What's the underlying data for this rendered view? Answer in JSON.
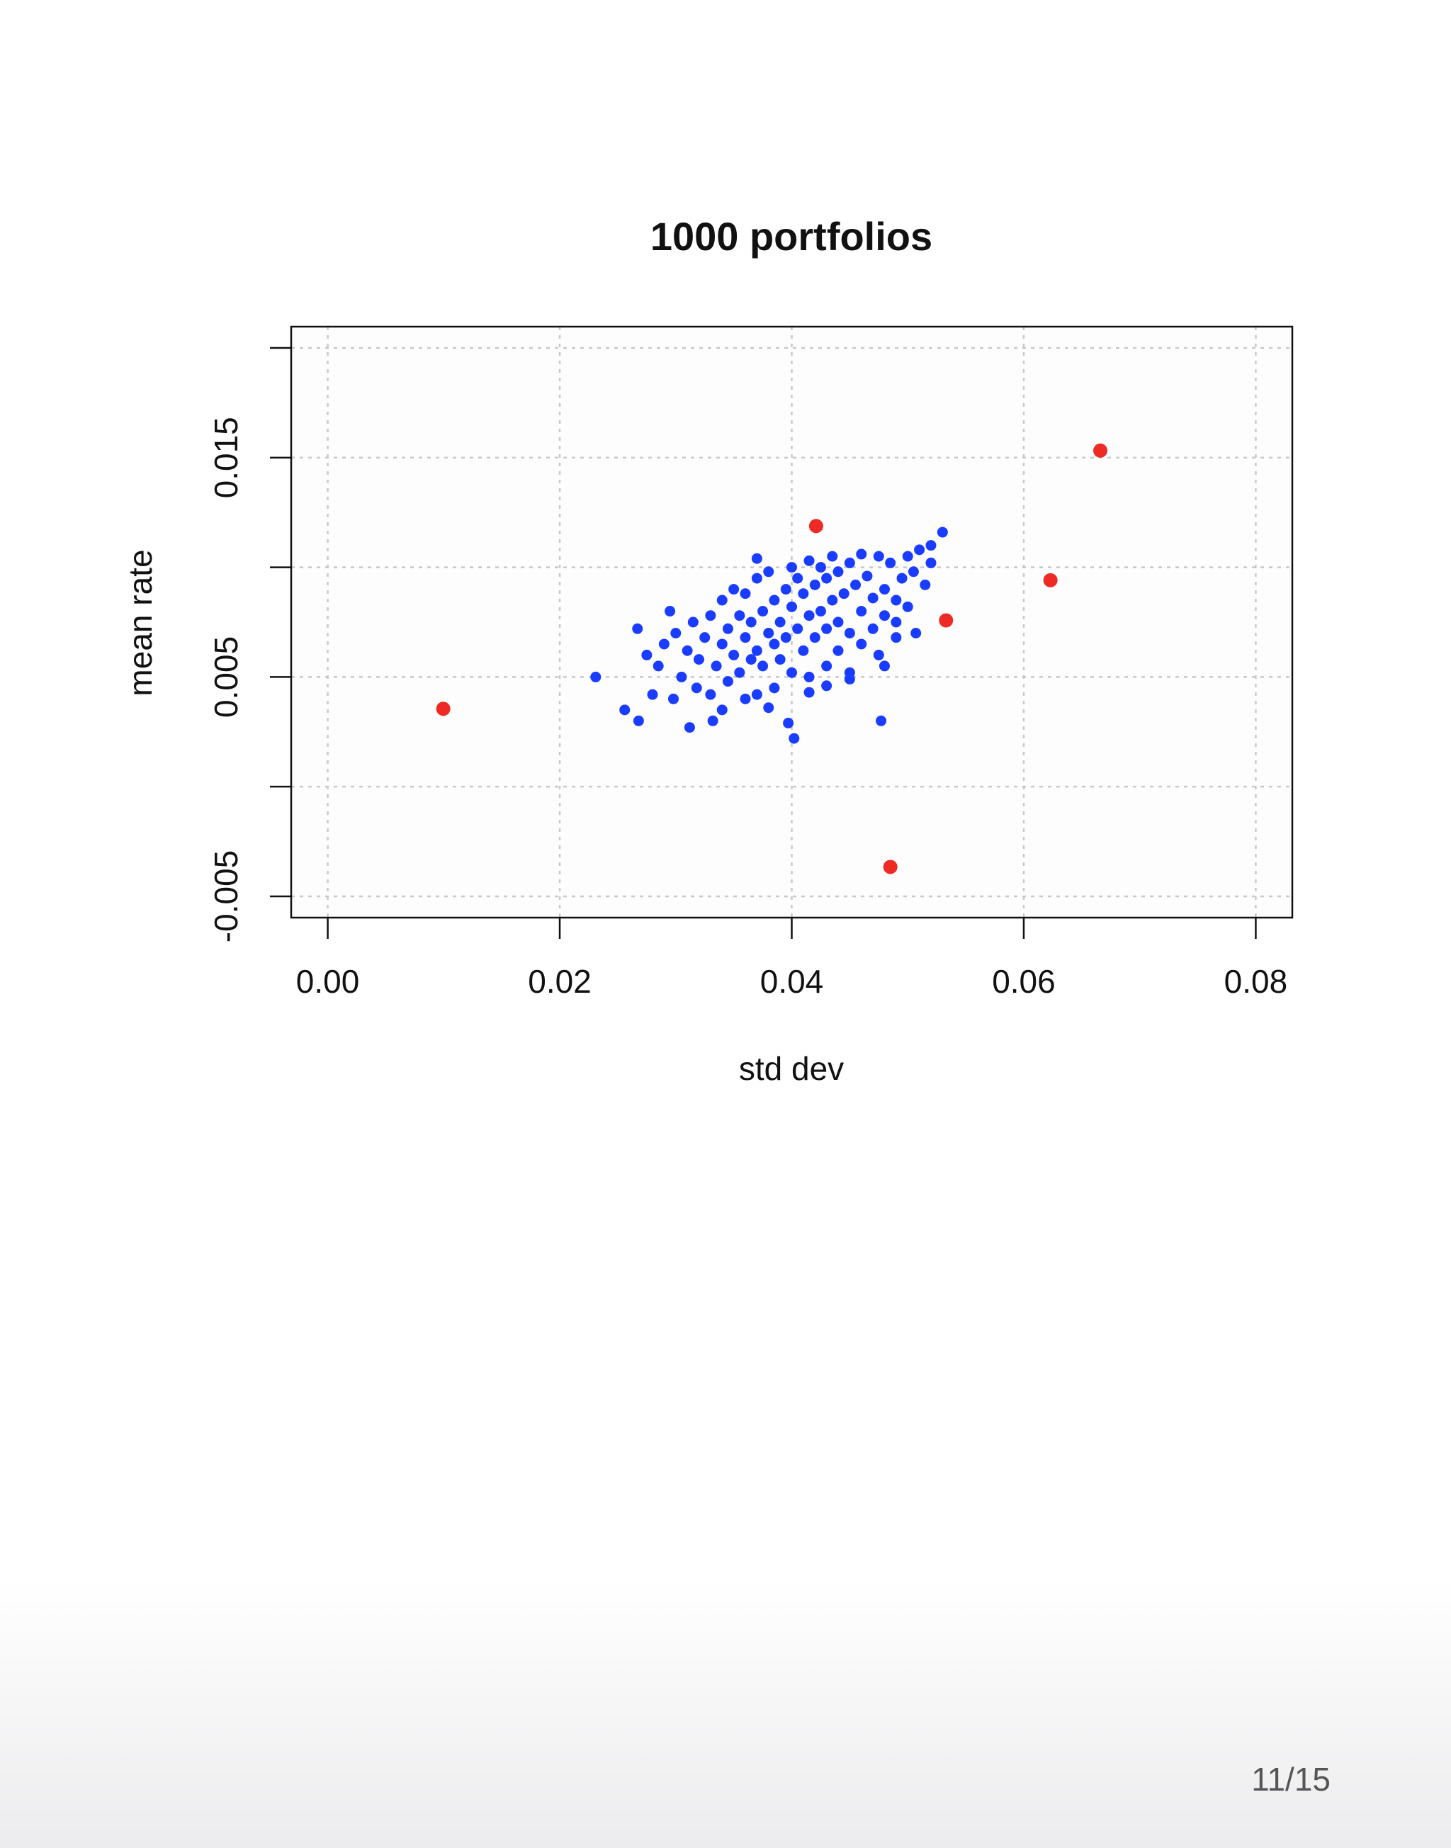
{
  "chart_data": {
    "type": "scatter",
    "title": "1000  portfolios",
    "x_label": "std dev",
    "y_label": "mean rate",
    "xlim": [
      -0.00315,
      0.08315
    ],
    "ylim": [
      -0.00597,
      0.02097
    ],
    "xticks": [
      {
        "value": 0,
        "label": "0.00"
      },
      0.02,
      0.04,
      0.06,
      0.08
    ],
    "yticks": [
      -0.005,
      {
        "value": 0,
        "label": null
      },
      0.005,
      {
        "value": 0.01,
        "label": null
      },
      0.015,
      {
        "value": 0.02,
        "label": null
      }
    ],
    "grid": true,
    "series": [
      {
        "color": "#1a3cff",
        "x": [
          0.0231,
          0.0256,
          0.0268,
          0.0312,
          0.0332,
          0.0397,
          0.0402,
          0.0477,
          0.053,
          0.0507,
          0.0267,
          0.0295,
          0.037,
          0.0275,
          0.028,
          0.0285,
          0.029,
          0.0298,
          0.03,
          0.0305,
          0.031,
          0.0315,
          0.0318,
          0.032,
          0.0325,
          0.033,
          0.033,
          0.0335,
          0.034,
          0.034,
          0.0345,
          0.0345,
          0.035,
          0.035,
          0.0355,
          0.0355,
          0.036,
          0.036,
          0.0365,
          0.0365,
          0.037,
          0.037,
          0.037,
          0.0375,
          0.0375,
          0.038,
          0.038,
          0.0385,
          0.0385,
          0.0385,
          0.039,
          0.039,
          0.0395,
          0.0395,
          0.04,
          0.04,
          0.04,
          0.0405,
          0.0405,
          0.041,
          0.041,
          0.0415,
          0.0415,
          0.0415,
          0.042,
          0.042,
          0.0425,
          0.0425,
          0.043,
          0.043,
          0.043,
          0.0435,
          0.0435,
          0.044,
          0.044,
          0.044,
          0.0445,
          0.045,
          0.045,
          0.045,
          0.0455,
          0.046,
          0.046,
          0.046,
          0.0465,
          0.047,
          0.047,
          0.0475,
          0.0475,
          0.048,
          0.048,
          0.0485,
          0.049,
          0.049,
          0.0495,
          0.05,
          0.05,
          0.0505,
          0.051,
          0.0515,
          0.052,
          0.052,
          0.045,
          0.043,
          0.036,
          0.038,
          0.0415,
          0.034,
          0.048,
          0.049
        ],
        "values": [
          0.005,
          0.0035,
          0.003,
          0.0027,
          0.003,
          0.0029,
          0.0022,
          0.003,
          0.0116,
          0.007,
          0.0072,
          0.008,
          0.0104,
          0.006,
          0.0042,
          0.0055,
          0.0065,
          0.004,
          0.007,
          0.005,
          0.0062,
          0.0075,
          0.0045,
          0.0058,
          0.0068,
          0.0078,
          0.0042,
          0.0055,
          0.0065,
          0.0085,
          0.0072,
          0.0048,
          0.006,
          0.009,
          0.0078,
          0.0052,
          0.0068,
          0.0088,
          0.0058,
          0.0075,
          0.0095,
          0.0062,
          0.0042,
          0.008,
          0.0055,
          0.007,
          0.0098,
          0.0065,
          0.0085,
          0.0045,
          0.0075,
          0.0058,
          0.009,
          0.0068,
          0.0082,
          0.01,
          0.0052,
          0.0072,
          0.0095,
          0.0062,
          0.0088,
          0.0078,
          0.0103,
          0.005,
          0.0092,
          0.0068,
          0.008,
          0.01,
          0.0072,
          0.0095,
          0.0055,
          0.0085,
          0.0105,
          0.0075,
          0.0098,
          0.0062,
          0.0088,
          0.007,
          0.0102,
          0.0052,
          0.0092,
          0.008,
          0.0106,
          0.0065,
          0.0096,
          0.0086,
          0.0072,
          0.0105,
          0.006,
          0.009,
          0.0078,
          0.0102,
          0.0085,
          0.0068,
          0.0095,
          0.0105,
          0.0082,
          0.0098,
          0.0108,
          0.0092,
          0.0102,
          0.011,
          0.0049,
          0.0046,
          0.004,
          0.0036,
          0.0043,
          0.0035,
          0.0055,
          0.0075
        ]
      },
      {
        "color": "#ee2a24",
        "x": [
          0.00996,
          0.0421,
          0.0666,
          0.0623,
          0.0533,
          0.0485
        ],
        "values": [
          0.00355,
          0.01188,
          0.01532,
          0.00941,
          0.00758,
          -0.00366
        ]
      }
    ]
  },
  "page_indicator": "11/15"
}
